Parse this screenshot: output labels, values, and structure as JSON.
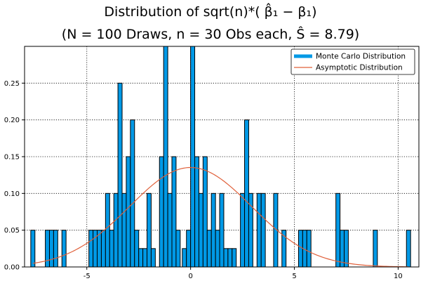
{
  "chart_data": {
    "type": "bar",
    "title_line1": "Distribution of sqrt(n)*( β̂₁ − β₁)",
    "title_line2": "(N = 100 Draws, n = 30 Obs each, Ŝ = 8.79)",
    "xlabel": "",
    "ylabel": "",
    "xlim": [
      -8.0,
      11.0
    ],
    "ylim": [
      0,
      0.3
    ],
    "grid": true,
    "legend_position": "top-right",
    "x_ticks": [
      -5,
      0,
      5,
      10
    ],
    "x_tick_labels": [
      "-5",
      "0",
      "5",
      "10"
    ],
    "y_ticks": [
      0.0,
      0.05,
      0.1,
      0.15,
      0.2,
      0.25
    ],
    "y_tick_labels": [
      "0.00",
      "0.05",
      "0.10",
      "0.15",
      "0.20",
      "0.25"
    ],
    "bin_width": 0.2,
    "histogram_series": {
      "name": "Monte Carlo Distribution",
      "color": "#0099e6",
      "bars": [
        {
          "x": -7.6,
          "y": 0.05
        },
        {
          "x": -6.9,
          "y": 0.05
        },
        {
          "x": -6.7,
          "y": 0.05
        },
        {
          "x": -6.5,
          "y": 0.05
        },
        {
          "x": -6.1,
          "y": 0.05
        },
        {
          "x": -4.8,
          "y": 0.05
        },
        {
          "x": -4.6,
          "y": 0.05
        },
        {
          "x": -4.4,
          "y": 0.05
        },
        {
          "x": -4.2,
          "y": 0.05
        },
        {
          "x": -4.0,
          "y": 0.1
        },
        {
          "x": -3.8,
          "y": 0.05
        },
        {
          "x": -3.6,
          "y": 0.1
        },
        {
          "x": -3.4,
          "y": 0.25
        },
        {
          "x": -3.2,
          "y": 0.1
        },
        {
          "x": -3.0,
          "y": 0.15
        },
        {
          "x": -2.8,
          "y": 0.2
        },
        {
          "x": -2.6,
          "y": 0.05
        },
        {
          "x": -2.4,
          "y": 0.025
        },
        {
          "x": -2.2,
          "y": 0.025
        },
        {
          "x": -2.0,
          "y": 0.1
        },
        {
          "x": -1.8,
          "y": 0.025
        },
        {
          "x": -1.4,
          "y": 0.15
        },
        {
          "x": -1.2,
          "y": 0.3
        },
        {
          "x": -1.0,
          "y": 0.1
        },
        {
          "x": -0.8,
          "y": 0.15
        },
        {
          "x": -0.6,
          "y": 0.05
        },
        {
          "x": -0.3,
          "y": 0.025
        },
        {
          "x": -0.1,
          "y": 0.05
        },
        {
          "x": 0.1,
          "y": 0.3
        },
        {
          "x": 0.3,
          "y": 0.15
        },
        {
          "x": 0.5,
          "y": 0.1
        },
        {
          "x": 0.7,
          "y": 0.15
        },
        {
          "x": 0.9,
          "y": 0.05
        },
        {
          "x": 1.1,
          "y": 0.1
        },
        {
          "x": 1.3,
          "y": 0.05
        },
        {
          "x": 1.5,
          "y": 0.1
        },
        {
          "x": 1.7,
          "y": 0.025
        },
        {
          "x": 1.9,
          "y": 0.025
        },
        {
          "x": 2.1,
          "y": 0.025
        },
        {
          "x": 2.5,
          "y": 0.1
        },
        {
          "x": 2.7,
          "y": 0.2
        },
        {
          "x": 2.9,
          "y": 0.1
        },
        {
          "x": 3.3,
          "y": 0.1
        },
        {
          "x": 3.5,
          "y": 0.1
        },
        {
          "x": 4.1,
          "y": 0.1
        },
        {
          "x": 4.5,
          "y": 0.05
        },
        {
          "x": 5.3,
          "y": 0.05
        },
        {
          "x": 5.5,
          "y": 0.05
        },
        {
          "x": 5.7,
          "y": 0.05
        },
        {
          "x": 7.1,
          "y": 0.1
        },
        {
          "x": 7.3,
          "y": 0.05
        },
        {
          "x": 7.5,
          "y": 0.05
        },
        {
          "x": 8.9,
          "y": 0.05
        },
        {
          "x": 10.5,
          "y": 0.05
        }
      ]
    },
    "curve_series": {
      "name": "Asymptotic Distribution",
      "color": "#e0603a",
      "type": "normal_pdf",
      "mean": 0.0,
      "std": 2.95
    }
  }
}
